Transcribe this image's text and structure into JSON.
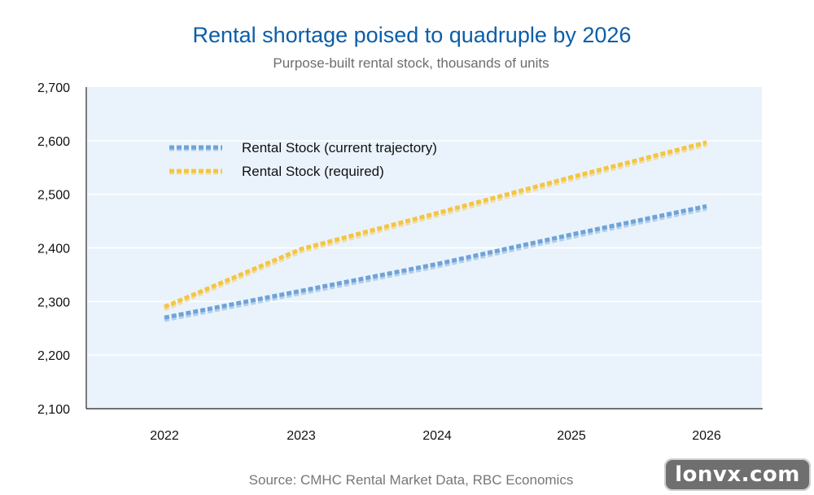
{
  "chart_data": {
    "type": "line",
    "title": "Rental shortage poised to quadruple by 2026",
    "subtitle": "Purpose-built rental stock, thousands of units",
    "source": "Source: CMHC Rental Market Data, RBC Economics",
    "x": [
      "2022",
      "2023",
      "2024",
      "2025",
      "2026"
    ],
    "ylim": [
      2100,
      2700
    ],
    "yticks": [
      2100,
      2200,
      2300,
      2400,
      2500,
      2600,
      2700
    ],
    "ytick_labels": [
      "2,100",
      "2,200",
      "2,300",
      "2,400",
      "2,500",
      "2,600",
      "2,700"
    ],
    "grid": true,
    "legend_position": "top-left",
    "series": [
      {
        "name": "Rental Stock (current trajectory)",
        "values": [
          2270,
          2320,
          2370,
          2425,
          2478
        ],
        "color": "#6fa3d8",
        "style": "dashed"
      },
      {
        "name": "Rental Stock (required)",
        "values": [
          2290,
          2398,
          2465,
          2532,
          2597
        ],
        "color": "#f5c542",
        "style": "dashed"
      }
    ],
    "plot_background": "#eaf3fb"
  },
  "watermark": "lonvx.com"
}
